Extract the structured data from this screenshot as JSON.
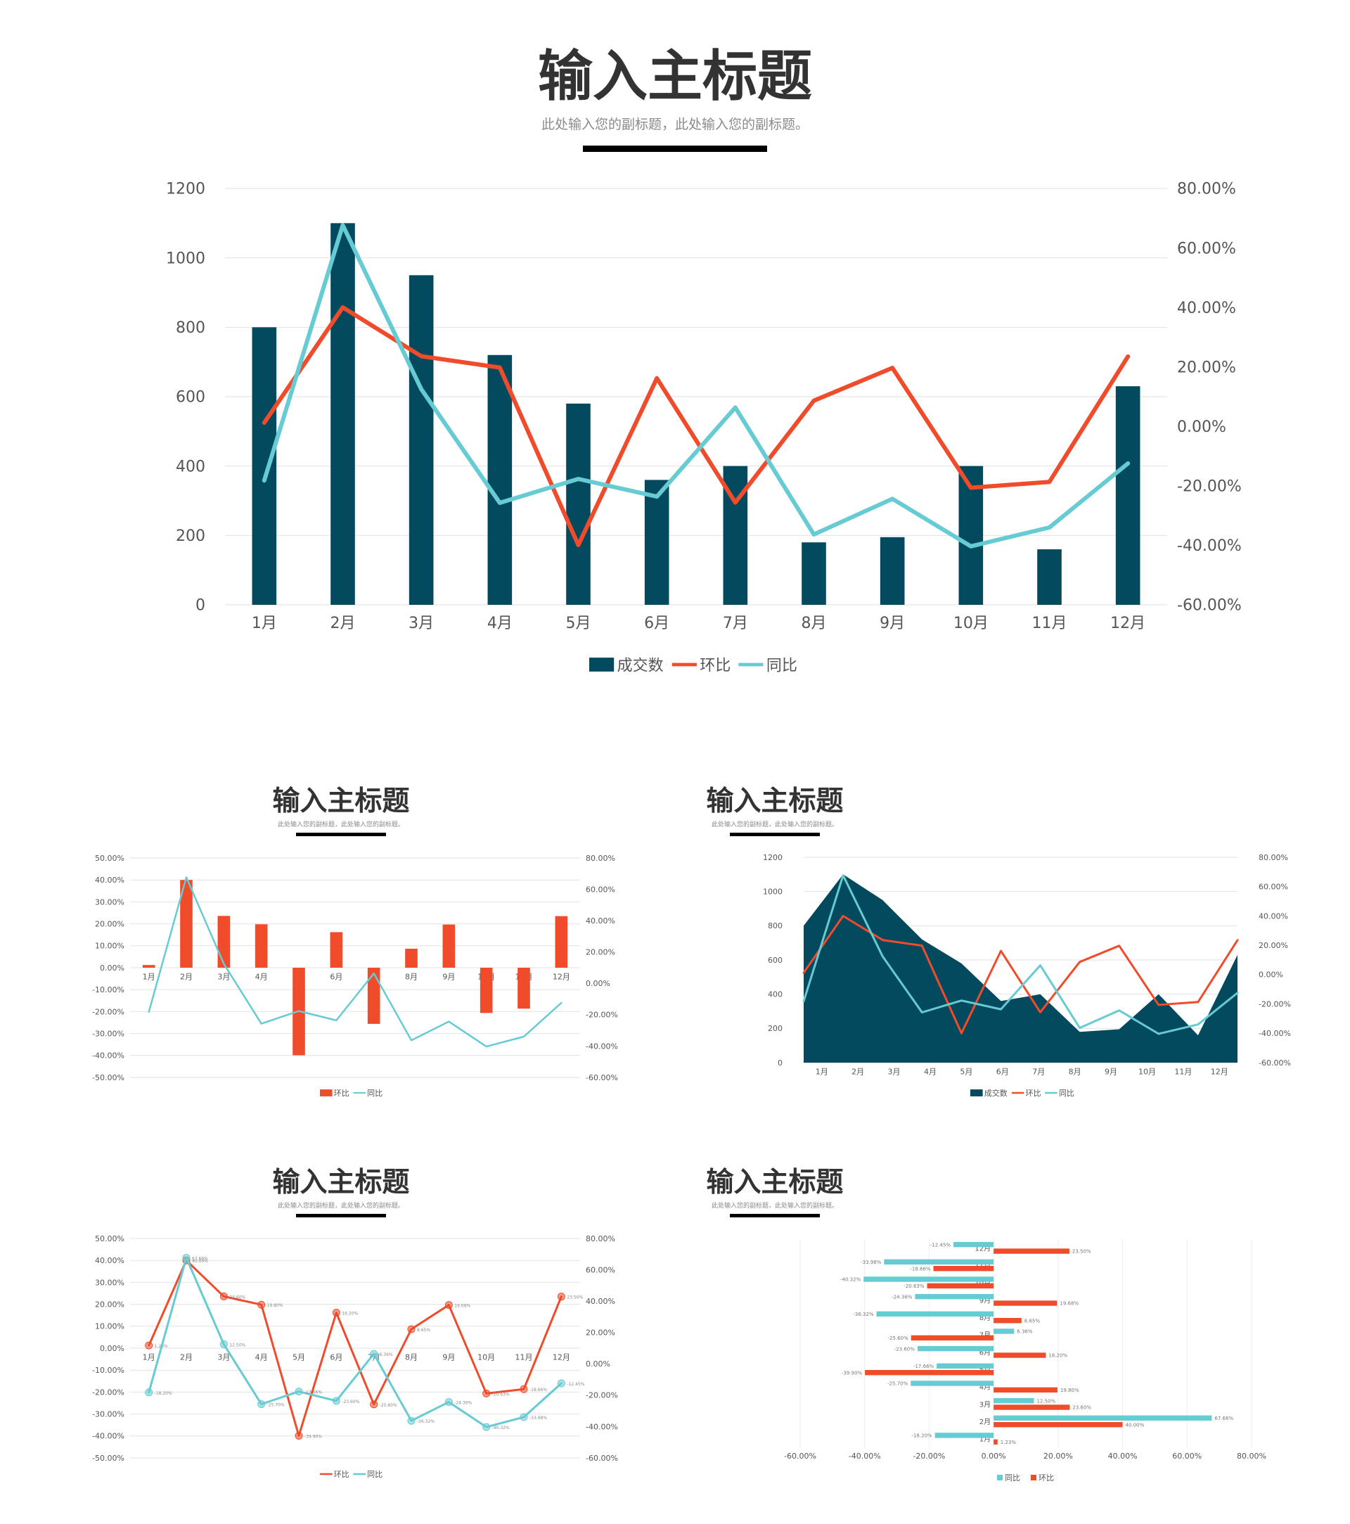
{
  "main": {
    "title": "输入主标题",
    "subtitle": "此处输入您的副标题，此处输入您的副标题。"
  },
  "panels": [
    {
      "title": "输入主标题",
      "subtitle": "此处输入您的副标题，此处输入您的副标题。"
    },
    {
      "title": "输入主标题",
      "subtitle": "此处输入您的副标题，此处输入您的副标题。"
    },
    {
      "title": "输入主标题",
      "subtitle": "此处输入您的副标题，此处输入您的副标题。"
    },
    {
      "title": "输入主标题",
      "subtitle": "此处输入您的副标题，此处输入您的副标题。"
    }
  ],
  "colors": {
    "deal": "#034A5F",
    "mom": "#F04B2A",
    "yoy": "#66CBD2",
    "grid": "#E2E2E2",
    "axis_text": "#555555"
  },
  "chart_data": [
    {
      "type": "bar",
      "title": "",
      "xlabel": "",
      "ylabel": "",
      "categories": [
        "1月",
        "2月",
        "3月",
        "4月",
        "5月",
        "6月",
        "7月",
        "8月",
        "9月",
        "10月",
        "11月",
        "12月"
      ],
      "series": [
        {
          "name": "成交数",
          "type": "bar",
          "axis": "left",
          "values": [
            800,
            1100,
            950,
            720,
            580,
            360,
            400,
            180,
            195,
            400,
            160,
            630
          ]
        },
        {
          "name": "环比",
          "type": "line",
          "axis": "right",
          "values": [
            1.23,
            40.0,
            23.6,
            19.8,
            -39.9,
            16.2,
            -25.6,
            8.65,
            19.68,
            -20.63,
            -18.66,
            23.5
          ]
        },
        {
          "name": "同比",
          "type": "line",
          "axis": "right",
          "values": [
            -18.2,
            67.66,
            12.5,
            -25.7,
            -17.66,
            -23.6,
            6.36,
            -36.32,
            -24.36,
            -40.32,
            -33.98,
            -12.45
          ]
        }
      ],
      "ylim": [
        0,
        1200
      ],
      "yticks": [
        0,
        200,
        400,
        600,
        800,
        1000,
        1200
      ],
      "y2lim": [
        -60,
        80
      ],
      "y2ticks": [
        "-60.00%",
        "-40.00%",
        "-20.00%",
        "0.00%",
        "20.00%",
        "40.00%",
        "60.00%",
        "80.00%"
      ],
      "legend": "bottom",
      "grid": true
    },
    {
      "type": "bar",
      "categories": [
        "1月",
        "2月",
        "3月",
        "4月",
        "5月",
        "6月",
        "7月",
        "8月",
        "9月",
        "10月",
        "11月",
        "12月"
      ],
      "series": [
        {
          "name": "环比",
          "type": "bar",
          "axis": "left",
          "values": [
            1.23,
            40.0,
            23.6,
            19.8,
            -39.9,
            16.2,
            -25.6,
            8.65,
            19.68,
            -20.63,
            -18.66,
            23.5
          ]
        },
        {
          "name": "同比",
          "type": "line",
          "axis": "right",
          "values": [
            -18.2,
            67.66,
            12.5,
            -25.7,
            -17.66,
            -23.6,
            6.36,
            -36.32,
            -24.36,
            -40.32,
            -33.98,
            -12.45
          ]
        }
      ],
      "ylim": [
        -50,
        50
      ],
      "yticks": [
        "-50.00%",
        "-40.00%",
        "-30.00%",
        "-20.00%",
        "-10.00%",
        "0.00%",
        "10.00%",
        "20.00%",
        "30.00%",
        "40.00%",
        "50.00%"
      ],
      "y2lim": [
        -60,
        80
      ],
      "y2ticks": [
        "-60.00%",
        "-40.00%",
        "-20.00%",
        "0.00%",
        "20.00%",
        "40.00%",
        "60.00%",
        "80.00%"
      ],
      "legend": "bottom",
      "grid": true
    },
    {
      "type": "area",
      "categories": [
        "1月",
        "2月",
        "3月",
        "4月",
        "5月",
        "6月",
        "7月",
        "8月",
        "9月",
        "10月",
        "11月",
        "12月"
      ],
      "series": [
        {
          "name": "成交数",
          "type": "area",
          "axis": "left",
          "values": [
            800,
            1100,
            950,
            720,
            580,
            360,
            400,
            180,
            195,
            400,
            160,
            630
          ]
        },
        {
          "name": "环比",
          "type": "line",
          "axis": "right",
          "values": [
            1.23,
            40.0,
            23.6,
            19.8,
            -39.9,
            16.2,
            -25.6,
            8.65,
            19.68,
            -20.63,
            -18.66,
            23.5
          ]
        },
        {
          "name": "同比",
          "type": "line",
          "axis": "right",
          "values": [
            -18.2,
            67.66,
            12.5,
            -25.7,
            -17.66,
            -23.6,
            6.36,
            -36.32,
            -24.36,
            -40.32,
            -33.98,
            -12.45
          ]
        }
      ],
      "ylim": [
        0,
        1200
      ],
      "yticks": [
        0,
        200,
        400,
        600,
        800,
        1000,
        1200
      ],
      "y2lim": [
        -60,
        80
      ],
      "y2ticks": [
        "-60.00%",
        "-40.00%",
        "-20.00%",
        "0.00%",
        "20.00%",
        "40.00%",
        "60.00%",
        "80.00%"
      ],
      "legend": "bottom",
      "grid": true
    },
    {
      "type": "line",
      "categories": [
        "1月",
        "2月",
        "3月",
        "4月",
        "5月",
        "6月",
        "7月",
        "8月",
        "9月",
        "10月",
        "11月",
        "12月"
      ],
      "series": [
        {
          "name": "环比",
          "axis": "left",
          "values": [
            1.23,
            40.0,
            23.6,
            19.8,
            -39.9,
            16.2,
            -25.6,
            8.65,
            19.68,
            -20.63,
            -18.66,
            23.5
          ],
          "labels": [
            "1.23%",
            "40.00%",
            "23.60%",
            "19.80%",
            "-39.90%",
            "16.20%",
            "-25.60%",
            "8.65%",
            "19.68%",
            "-20.63%",
            "-18.66%",
            "23.50%"
          ]
        },
        {
          "name": "同比",
          "axis": "right",
          "values": [
            -18.2,
            67.66,
            12.5,
            -25.7,
            -17.66,
            -23.6,
            6.36,
            -36.32,
            -24.36,
            -40.32,
            -33.98,
            -12.45
          ],
          "labels": [
            "-18.20%",
            "67.66%",
            "12.50%",
            "-25.70%",
            "-17.66%",
            "-23.60%",
            "6.36%",
            "-36.32%",
            "-24.36%",
            "-40.32%",
            "-33.98%",
            "-12.45%"
          ]
        }
      ],
      "ylim": [
        -50,
        50
      ],
      "yticks": [
        "-50.00%",
        "-40.00%",
        "-30.00%",
        "-20.00%",
        "-10.00%",
        "0.00%",
        "10.00%",
        "20.00%",
        "30.00%",
        "40.00%",
        "50.00%"
      ],
      "y2lim": [
        -60,
        80
      ],
      "y2ticks": [
        "-60.00%",
        "-40.00%",
        "-20.00%",
        "0.00%",
        "20.00%",
        "40.00%",
        "60.00%",
        "80.00%"
      ],
      "legend": "bottom",
      "grid": true
    },
    {
      "type": "bar",
      "orientation": "horizontal",
      "categories": [
        "1月",
        "2月",
        "3月",
        "4月",
        "5月",
        "6月",
        "7月",
        "8月",
        "9月",
        "10月",
        "11月",
        "12月"
      ],
      "series": [
        {
          "name": "同比",
          "values": [
            -18.2,
            67.66,
            12.5,
            -25.7,
            -17.66,
            -23.6,
            6.36,
            -36.32,
            -24.36,
            -40.32,
            -33.98,
            -12.45
          ],
          "labels": [
            "-18.20%",
            "67.66%",
            "12.50%",
            "-25.70%",
            "-17.66%",
            "-23.60%",
            "6.36%",
            "-36.32%",
            "-24.36%",
            "-40.32%",
            "-33.98%",
            "-12.45%"
          ]
        },
        {
          "name": "环比",
          "values": [
            1.23,
            40.0,
            23.6,
            19.8,
            -39.9,
            16.2,
            -25.6,
            8.65,
            19.68,
            -20.63,
            -18.66,
            23.5
          ],
          "labels": [
            "1.23%",
            "40.00%",
            "23.60%",
            "19.80%",
            "-39.90%",
            "16.20%",
            "-25.60%",
            "8.65%",
            "19.68%",
            "-20.63%",
            "-18.66%",
            "23.50%"
          ]
        }
      ],
      "xlim": [
        -60,
        80
      ],
      "xticks": [
        "-60.00%",
        "-40.00%",
        "-20.00%",
        "0.00%",
        "20.00%",
        "40.00%",
        "60.00%",
        "80.00%"
      ],
      "legend": "bottom",
      "grid": true
    }
  ]
}
